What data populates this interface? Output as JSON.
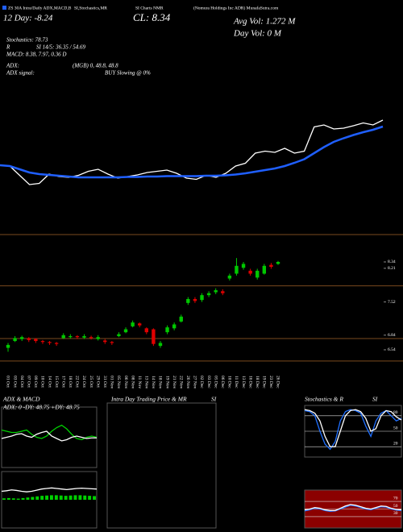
{
  "header": {
    "line1": [
      "ZS 30A Intra/Daily ADX,MACD,B",
      "SI,Stochastics,MR",
      "SI Charts NMR",
      "(Nomura Holdings Inc ADR) MunafaSutra.com"
    ],
    "day": "12 Day: -8.24",
    "close": "CL: 8.34",
    "avg_vol": "Avg Vol: 1.272 M",
    "day_vol": "Day Vol: 0 M",
    "stochastics": "Stochastics: 78.73",
    "r": "R",
    "rsi": "SI 14/5: 36.35 / 54.69",
    "macd": "MACD: 8.38, 7.97, 0.36 D",
    "adx": "ADX:",
    "adx_values": "(MGB) 0, 48.8, 48.8",
    "adx_signal": "ADX signal:",
    "signal": "BUY Slowing @ 0%"
  },
  "chart_data": [
    {
      "type": "line",
      "ylim": [
        6.6,
        8.6
      ],
      "series": [
        {
          "color": "#ffffff",
          "values": [
            7.3,
            7.28,
            7.05,
            6.82,
            6.85,
            7.08,
            7.02,
            7.0,
            7.05,
            7.15,
            7.2,
            7.08,
            6.98,
            7.02,
            7.06,
            7.12,
            7.15,
            7.18,
            7.1,
            6.98,
            6.95,
            7.05,
            7.0,
            7.1,
            7.28,
            7.35,
            7.6,
            7.65,
            7.62,
            7.72,
            7.6,
            7.65,
            8.25,
            8.3,
            8.2,
            8.22,
            8.28,
            8.35,
            8.3,
            8.42
          ]
        },
        {
          "color": "#1f5fff",
          "values": [
            7.3,
            7.28,
            7.2,
            7.12,
            7.08,
            7.06,
            7.04,
            7.02,
            7.0,
            7.0,
            7.0,
            7.0,
            7.0,
            7.01,
            7.01,
            7.02,
            7.02,
            7.03,
            7.03,
            7.03,
            7.03,
            7.04,
            7.04,
            7.05,
            7.07,
            7.1,
            7.14,
            7.18,
            7.22,
            7.28,
            7.36,
            7.45,
            7.6,
            7.75,
            7.88,
            7.97,
            8.05,
            8.12,
            8.18,
            8.26
          ]
        }
      ]
    },
    {
      "type": "candlestick",
      "ylim": [
        6.11,
        9.0
      ],
      "yticks": [
        8.34,
        8.21,
        7.52,
        6.84,
        6.54
      ],
      "levels": [
        8.9,
        7.85,
        6.77,
        6.31
      ],
      "level_color": "#7a4a1e",
      "up_color": "#00c800",
      "down_color": "#e00000",
      "categories": [
        "01 Oct",
        "03 Oct",
        "04 Oct",
        "07 Oct",
        "09 Oct",
        "10 Oct",
        "14 Oct",
        "15 Oct",
        "17 Oct",
        "18 Oct",
        "22 Oct",
        "24 Oct",
        "25 Oct",
        "29 Oct",
        "31 Oct",
        "01 Nov",
        "05 Nov",
        "06 Nov",
        "08 Nov",
        "11 Nov",
        "13 Nov",
        "14 Nov",
        "18 Nov",
        "19 Nov",
        "21 Nov",
        "22 Nov",
        "26 Nov",
        "27 Nov",
        "02 Dec",
        "03 Dec",
        "05 Dec",
        "06 Dec",
        "10 Dec",
        "11 Dec",
        "13 Dec",
        "16 Dec",
        "18 Dec",
        "19 Dec",
        "23 Dec",
        "26 Dec"
      ],
      "open": [
        6.58,
        6.72,
        6.76,
        6.78,
        6.76,
        6.72,
        6.7,
        6.68,
        6.78,
        6.8,
        6.82,
        6.79,
        6.8,
        6.76,
        6.73,
        6.7,
        6.82,
        6.9,
        7.02,
        7.08,
        6.98,
        6.96,
        6.62,
        6.9,
        6.98,
        7.12,
        7.5,
        7.58,
        7.56,
        7.66,
        7.72,
        7.74,
        8.0,
        8.1,
        8.22,
        8.16,
        8.02,
        8.1,
        8.28,
        8.3
      ],
      "high": [
        6.68,
        6.82,
        6.83,
        6.8,
        6.78,
        6.74,
        6.72,
        6.7,
        6.88,
        6.86,
        6.84,
        6.86,
        6.83,
        6.84,
        6.76,
        6.72,
        6.9,
        7.0,
        7.14,
        7.1,
        7.0,
        6.98,
        6.72,
        7.04,
        7.1,
        7.26,
        7.62,
        7.62,
        7.7,
        7.74,
        7.8,
        7.78,
        8.1,
        8.42,
        8.34,
        8.2,
        8.2,
        8.3,
        8.32,
        8.36
      ],
      "low": [
        6.5,
        6.7,
        6.72,
        6.7,
        6.68,
        6.66,
        6.64,
        6.62,
        6.76,
        6.77,
        6.76,
        6.76,
        6.75,
        6.73,
        6.66,
        6.64,
        6.8,
        6.88,
        7.0,
        7.0,
        6.86,
        6.62,
        6.58,
        6.86,
        6.94,
        7.1,
        7.46,
        7.5,
        7.52,
        7.62,
        7.68,
        7.66,
        7.96,
        8.06,
        8.18,
        8.06,
        7.98,
        8.08,
        8.2,
        8.28
      ],
      "close": [
        6.64,
        6.78,
        6.8,
        6.74,
        6.72,
        6.7,
        6.68,
        6.66,
        6.84,
        6.82,
        6.8,
        6.82,
        6.78,
        6.8,
        6.7,
        6.68,
        6.86,
        6.96,
        7.1,
        7.04,
        6.9,
        6.66,
        6.68,
        7.0,
        7.06,
        7.22,
        7.58,
        7.54,
        7.66,
        7.7,
        7.76,
        7.7,
        8.06,
        8.26,
        8.3,
        8.1,
        8.16,
        8.26,
        8.24,
        8.34
      ]
    },
    {
      "type": "line",
      "title": "ADX  & MACD",
      "annotation": "ADX: 0  -DY: 48.75  +DY: 48.75",
      "ylim": [
        0,
        100
      ],
      "series": [
        {
          "color": "#00d000",
          "values": [
            62,
            60,
            58,
            58,
            60,
            62,
            55,
            50,
            48,
            52,
            60,
            66,
            70,
            64,
            55,
            48,
            46,
            50,
            52,
            50
          ]
        },
        {
          "color": "#ffffff",
          "values": [
            48,
            50,
            52,
            55,
            56,
            52,
            50,
            55,
            58,
            60,
            52,
            48,
            44,
            46,
            50,
            52,
            50,
            48,
            49,
            49
          ]
        }
      ]
    },
    {
      "type": "bar",
      "ylim": [
        -1,
        1
      ],
      "color": "#00d000",
      "values": [
        0.05,
        0.06,
        0.05,
        0.04,
        0.06,
        0.08,
        0.1,
        0.12,
        0.14,
        0.15,
        0.16,
        0.16,
        0.15,
        0.14,
        0.15,
        0.16,
        0.16,
        0.15,
        0.14,
        0.13
      ],
      "series": [
        {
          "color": "#ffffff",
          "values": [
            0.3,
            0.32,
            0.35,
            0.33,
            0.3,
            0.28,
            0.3,
            0.34,
            0.38,
            0.4,
            0.42,
            0.4,
            0.38,
            0.36,
            0.38,
            0.4,
            0.41,
            0.4,
            0.39,
            0.38
          ]
        }
      ]
    },
    {
      "type": "line",
      "title": "Intra Day Trading Price & MR",
      "subtitle": "SI",
      "series": []
    },
    {
      "type": "line",
      "title": "Stochastics & R",
      "subtitle": "SI",
      "ylim": [
        0,
        100
      ],
      "yticks": [
        20,
        50,
        80
      ],
      "background": "#000000",
      "series": [
        {
          "color": "#1f6fff",
          "values": [
            90,
            88,
            80,
            50,
            25,
            15,
            30,
            70,
            88,
            92,
            90,
            85,
            60,
            40,
            70,
            85,
            90,
            80,
            70,
            75
          ]
        },
        {
          "color": "#ffffff",
          "values": [
            92,
            90,
            85,
            70,
            40,
            20,
            20,
            50,
            80,
            90,
            92,
            88,
            75,
            50,
            55,
            80,
            90,
            88,
            78,
            72
          ]
        }
      ]
    },
    {
      "type": "line",
      "ylim": [
        0,
        100
      ],
      "yticks": [
        30,
        50,
        70
      ],
      "background": "#8b0000",
      "series": [
        {
          "color": "#1f6fff",
          "values": [
            45,
            48,
            52,
            50,
            46,
            44,
            45,
            50,
            55,
            60,
            58,
            54,
            50,
            48,
            52,
            56,
            55,
            50,
            47,
            46
          ]
        },
        {
          "color": "#ffffff",
          "values": [
            48,
            50,
            54,
            52,
            48,
            46,
            46,
            52,
            58,
            62,
            60,
            56,
            52,
            50,
            54,
            58,
            57,
            52,
            49,
            48
          ]
        }
      ]
    }
  ]
}
